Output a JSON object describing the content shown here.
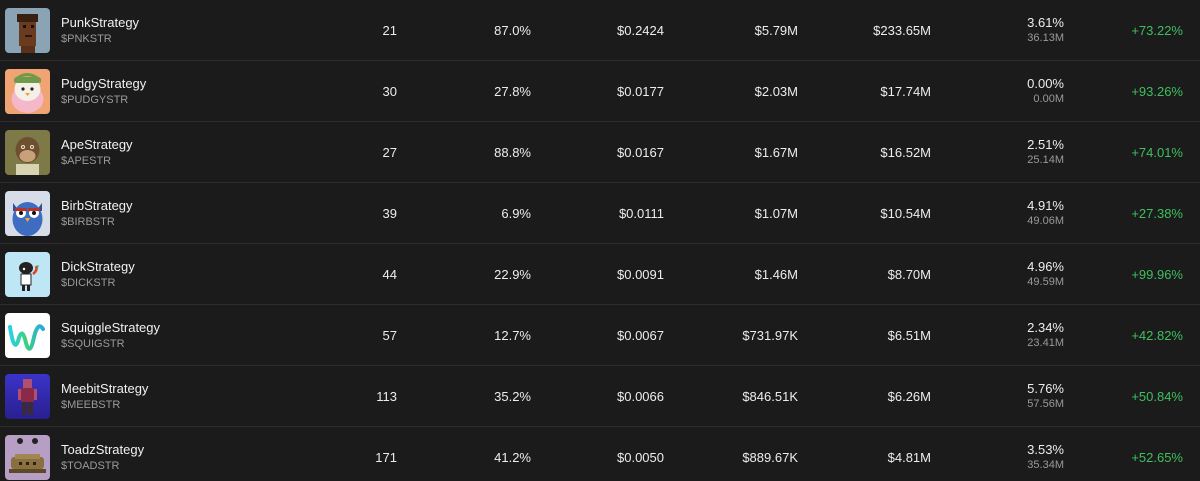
{
  "rows": [
    {
      "icon": "punk-avatar-icon",
      "name": "PunkStrategy",
      "ticker": "$PNKSTR",
      "holders": "21",
      "percent": "87.0%",
      "price": "$0.2424",
      "volume": "$5.79M",
      "market_cap": "$233.65M",
      "share_pct": "3.61%",
      "share_amt": "36.13M",
      "change": "+73.22%"
    },
    {
      "icon": "pudgy-penguin-avatar-icon",
      "name": "PudgyStrategy",
      "ticker": "$PUDGYSTR",
      "holders": "30",
      "percent": "27.8%",
      "price": "$0.0177",
      "volume": "$2.03M",
      "market_cap": "$17.74M",
      "share_pct": "0.00%",
      "share_amt": "0.00M",
      "change": "+93.26%"
    },
    {
      "icon": "ape-avatar-icon",
      "name": "ApeStrategy",
      "ticker": "$APESTR",
      "holders": "27",
      "percent": "88.8%",
      "price": "$0.0167",
      "volume": "$1.67M",
      "market_cap": "$16.52M",
      "share_pct": "2.51%",
      "share_amt": "25.14M",
      "change": "+74.01%"
    },
    {
      "icon": "owl-avatar-icon",
      "name": "BirbStrategy",
      "ticker": "$BIRBSTR",
      "holders": "39",
      "percent": "6.9%",
      "price": "$0.0111",
      "volume": "$1.07M",
      "market_cap": "$10.54M",
      "share_pct": "4.91%",
      "share_amt": "49.06M",
      "change": "+27.38%"
    },
    {
      "icon": "dick-character-avatar-icon",
      "name": "DickStrategy",
      "ticker": "$DICKSTR",
      "holders": "44",
      "percent": "22.9%",
      "price": "$0.0091",
      "volume": "$1.46M",
      "market_cap": "$8.70M",
      "share_pct": "4.96%",
      "share_amt": "49.59M",
      "change": "+99.96%"
    },
    {
      "icon": "squiggle-avatar-icon",
      "name": "SquiggleStrategy",
      "ticker": "$SQUIGSTR",
      "holders": "57",
      "percent": "12.7%",
      "price": "$0.0067",
      "volume": "$731.97K",
      "market_cap": "$6.51M",
      "share_pct": "2.34%",
      "share_amt": "23.41M",
      "change": "+42.82%"
    },
    {
      "icon": "meebit-avatar-icon",
      "name": "MeebitStrategy",
      "ticker": "$MEEBSTR",
      "holders": "113",
      "percent": "35.2%",
      "price": "$0.0066",
      "volume": "$846.51K",
      "market_cap": "$6.26M",
      "share_pct": "5.76%",
      "share_amt": "57.56M",
      "change": "+50.84%"
    },
    {
      "icon": "toad-avatar-icon",
      "name": "ToadzStrategy",
      "ticker": "$TOADSTR",
      "holders": "171",
      "percent": "41.2%",
      "price": "$0.0050",
      "volume": "$889.67K",
      "market_cap": "$4.81M",
      "share_pct": "3.53%",
      "share_amt": "35.34M",
      "change": "+52.65%"
    }
  ],
  "colors": {
    "background": "#1b1b1b",
    "positive": "#3fbf5f",
    "muted_text": "#9a9a9a",
    "divider": "#2e2e2e"
  }
}
